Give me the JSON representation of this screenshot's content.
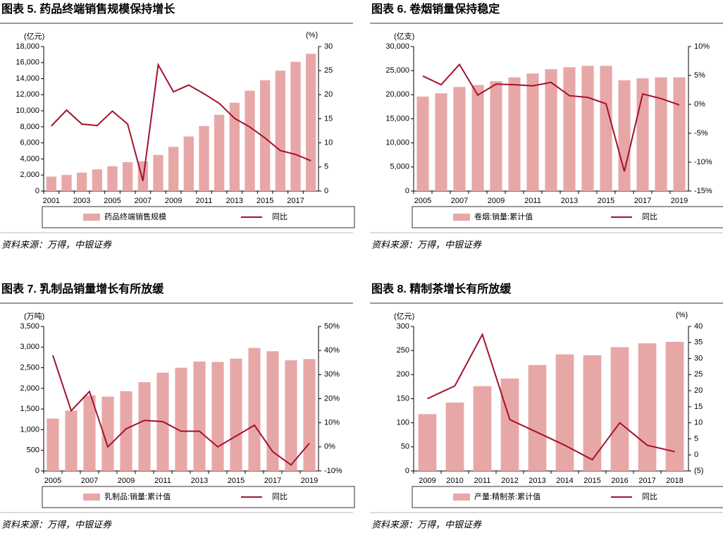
{
  "chart_data": [
    {
      "type": "bar",
      "title": "图表 5. 药品终端销售规模保持增长",
      "y_label": "(亿元)",
      "y2_label": "(%)",
      "source": "资料来源：万得，中银证券",
      "categories": [
        "2001",
        null,
        "2003",
        null,
        "2005",
        null,
        "2007",
        null,
        "2009",
        null,
        "2011",
        null,
        "2013",
        null,
        "2015",
        null,
        "2017",
        null
      ],
      "series": [
        {
          "name": "药品终端销售规模",
          "type": "bar",
          "color": "#e8a7a7",
          "values": [
            1800,
            2000,
            2300,
            2700,
            3100,
            3600,
            3700,
            4500,
            5500,
            6800,
            8100,
            9500,
            11000,
            12500,
            13800,
            15000,
            16100,
            17100
          ]
        },
        {
          "name": "同比",
          "type": "line",
          "axis": "y2",
          "color": "#a3122d",
          "values": [
            13.5,
            16.8,
            13.9,
            13.6,
            16.6,
            13.9,
            2.1,
            26.2,
            20.6,
            22,
            20.2,
            18.2,
            15.1,
            13.3,
            11,
            8.4,
            7.6,
            6.3
          ]
        }
      ],
      "ylim": [
        0,
        18000
      ],
      "yticks": [
        0,
        {
          "value": 2000,
          "label": "2,000"
        },
        {
          "value": 4000,
          "label": "4,000"
        },
        {
          "value": 6000,
          "label": "6,000"
        },
        {
          "value": 8000,
          "label": "8,000"
        },
        {
          "value": 10000,
          "label": "10,000"
        },
        {
          "value": 12000,
          "label": "12,000"
        },
        {
          "value": 14000,
          "label": "14,000"
        },
        {
          "value": 16000,
          "label": "16,000"
        },
        {
          "value": 18000,
          "label": "18,000"
        }
      ],
      "y2lim": [
        0,
        30
      ],
      "y2ticks": [
        0,
        5,
        10,
        15,
        20,
        25,
        30
      ]
    },
    {
      "type": "bar",
      "title": "图表 6. 卷烟销量保持稳定",
      "y_label": "(亿支)",
      "source": "资料来源：万得，中银证券",
      "categories": [
        "2005",
        null,
        "2007",
        null,
        "2009",
        null,
        "2011",
        null,
        "2013",
        null,
        "2015",
        null,
        "2017",
        null,
        "2019"
      ],
      "series": [
        {
          "name": "卷烟:销量:累计值",
          "type": "bar",
          "color": "#e8a7a7",
          "values": [
            19600,
            20300,
            21600,
            22000,
            22800,
            23600,
            24400,
            25300,
            25700,
            26000,
            26000,
            23000,
            23400,
            23600,
            23600
          ]
        },
        {
          "name": "同比",
          "type": "line",
          "axis": "y2",
          "color": "#a3122d",
          "values": [
            4.9,
            3.4,
            6.9,
            1.6,
            3.5,
            3.4,
            3.2,
            3.8,
            1.5,
            1.2,
            0.1,
            -11.6,
            1.8,
            1.0,
            -0.1
          ]
        }
      ],
      "ylim": [
        0,
        30000
      ],
      "yticks": [
        0,
        {
          "value": 5000,
          "label": "5,000"
        },
        {
          "value": 10000,
          "label": "10,000"
        },
        {
          "value": 15000,
          "label": "15,000"
        },
        {
          "value": 20000,
          "label": "20,000"
        },
        {
          "value": 25000,
          "label": "25,000"
        },
        {
          "value": 30000,
          "label": "30,000"
        }
      ],
      "y2lim": [
        -15,
        10
      ],
      "y2ticks": [
        {
          "value": -15,
          "label": "-15%"
        },
        {
          "value": -10,
          "label": "-10%"
        },
        {
          "value": -5,
          "label": "-5%"
        },
        {
          "value": 0,
          "label": "0%"
        },
        {
          "value": 5,
          "label": "5%"
        },
        {
          "value": 10,
          "label": "10%"
        }
      ]
    },
    {
      "type": "bar",
      "title": "图表 7. 乳制品销量增长有所放缓",
      "y_label": "(万吨)",
      "source": "资料来源：万得，中银证券",
      "categories": [
        "2005",
        null,
        "2007",
        null,
        "2009",
        null,
        "2011",
        null,
        "2013",
        null,
        "2015",
        null,
        "2017",
        null,
        "2019"
      ],
      "series": [
        {
          "name": "乳制品:销量:累计值",
          "type": "bar",
          "color": "#e8a7a7",
          "values": [
            1270,
            1460,
            1830,
            1800,
            1930,
            2150,
            2380,
            2500,
            2650,
            2640,
            2720,
            2980,
            2900,
            2680,
            2710
          ]
        },
        {
          "name": "同比",
          "type": "line",
          "axis": "y2",
          "color": "#a3122d",
          "values": [
            38,
            15,
            23,
            0,
            7.5,
            11,
            10.5,
            6.5,
            6.5,
            0,
            4.5,
            9,
            -2,
            -7.5,
            1.5
          ]
        }
      ],
      "ylim": [
        0,
        3500
      ],
      "yticks": [
        0,
        500,
        {
          "value": 1000,
          "label": "1,000"
        },
        {
          "value": 1500,
          "label": "1,500"
        },
        {
          "value": 2000,
          "label": "2,000"
        },
        {
          "value": 2500,
          "label": "2,500"
        },
        {
          "value": 3000,
          "label": "3,000"
        },
        {
          "value": 3500,
          "label": "3,500"
        }
      ],
      "y2lim": [
        -10,
        50
      ],
      "y2ticks": [
        {
          "value": -10,
          "label": "-10%"
        },
        {
          "value": 0,
          "label": "0%"
        },
        {
          "value": 10,
          "label": "10%"
        },
        {
          "value": 20,
          "label": "20%"
        },
        {
          "value": 30,
          "label": "30%"
        },
        {
          "value": 40,
          "label": "40%"
        },
        {
          "value": 50,
          "label": "50%"
        }
      ]
    },
    {
      "type": "bar",
      "title": "图表 8. 精制茶增长有所放缓",
      "y_label": "(亿元)",
      "y2_label": "(%)",
      "source": "资料来源：万得，中银证券",
      "categories": [
        "2009",
        "2010",
        "2011",
        "2012",
        "2013",
        "2014",
        "2015",
        "2016",
        "2017",
        "2018"
      ],
      "series": [
        {
          "name": "产量:精制茶:累计值",
          "type": "bar",
          "color": "#e8a7a7",
          "values": [
            118,
            142,
            176,
            192,
            220,
            242,
            240,
            257,
            265,
            268
          ]
        },
        {
          "name": "同比",
          "type": "line",
          "axis": "y2",
          "color": "#a3122d",
          "values": [
            17.5,
            21.5,
            37.5,
            11,
            7,
            3,
            -1.5,
            10,
            3,
            1
          ]
        }
      ],
      "ylim": [
        0,
        300
      ],
      "yticks": [
        0,
        50,
        100,
        150,
        200,
        250,
        300
      ],
      "y2lim": [
        -5,
        40
      ],
      "y2ticks": [
        {
          "value": -5,
          "label": "(5)"
        },
        0,
        5,
        10,
        15,
        20,
        25,
        30,
        35,
        40
      ]
    }
  ]
}
